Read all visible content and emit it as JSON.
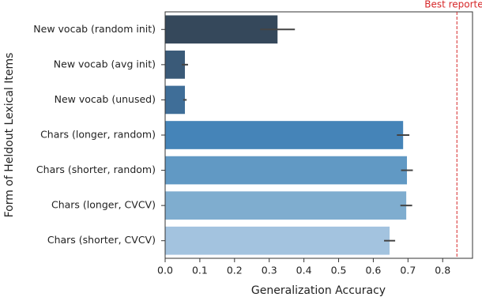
{
  "chart_data": {
    "type": "barh",
    "xlabel": "Generalization Accuracy",
    "ylabel": "Form of Heldout Lexical Items",
    "categories": [
      "New vocab (random init)",
      "New vocab (avg init)",
      "New vocab (unused)",
      "Chars (longer, random)",
      "Chars (shorter, random)",
      "Chars (longer, CVCV)",
      "Chars (shorter, CVCV)"
    ],
    "values": [
      0.324,
      0.057,
      0.057,
      0.686,
      0.697,
      0.695,
      0.647
    ],
    "errors": [
      0.05,
      0.009,
      0.005,
      0.018,
      0.017,
      0.017,
      0.016
    ],
    "colors": [
      "#35485b",
      "#3a5a78",
      "#3f6e98",
      "#4584b8",
      "#6199c4",
      "#7fadcf",
      "#a3c3df"
    ],
    "error_color": "#444444",
    "xlim": [
      0,
      0.886
    ],
    "xticks": [
      {
        "value": 0,
        "label": "0.0"
      },
      0.1,
      0.2,
      0.3,
      0.4,
      0.5,
      0.6,
      0.7,
      0.8
    ],
    "reference_line": {
      "value": 0.841,
      "label": "Best reported",
      "color": "#d62728"
    }
  }
}
